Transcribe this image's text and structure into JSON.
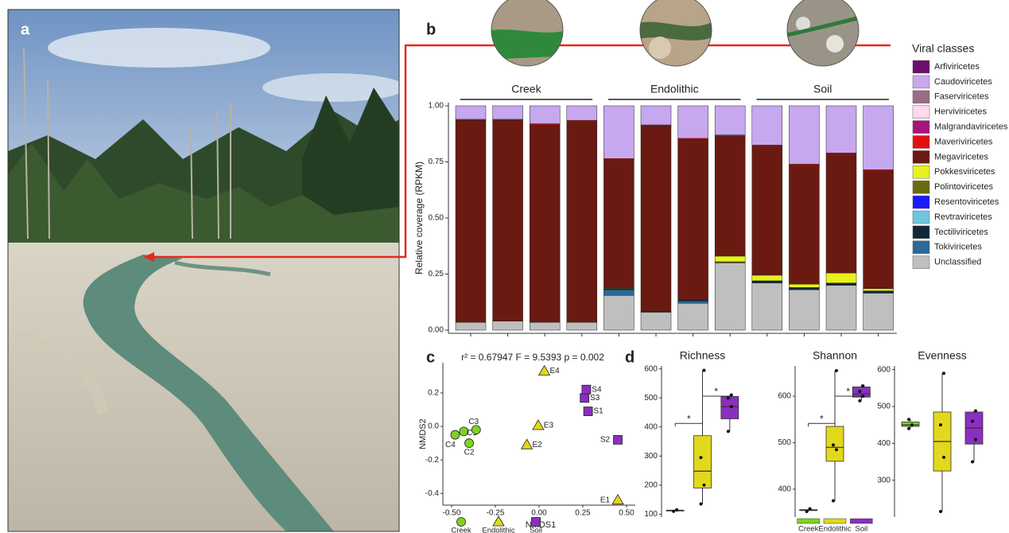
{
  "panel_labels": [
    "a",
    "b",
    "c",
    "d"
  ],
  "chart_data": [
    {
      "type": "bar",
      "stacked": true,
      "ylabel": "Relative coverage (RPKM)",
      "legend_title": "Viral classes",
      "groups": [
        "Creek",
        "Endolithic",
        "Soil"
      ],
      "categories": [
        null,
        null,
        null,
        null,
        null,
        null,
        null,
        null,
        null,
        null,
        null,
        null
      ],
      "ylim": [
        0,
        1
      ],
      "yticks": [
        {
          "value": 0,
          "label": "0.00"
        },
        {
          "value": 0.25,
          "label": "0.25"
        },
        {
          "value": 0.5,
          "label": "0.50"
        },
        {
          "value": 0.75,
          "label": "0.75"
        },
        {
          "value": 1,
          "label": "1.00"
        }
      ],
      "series": [
        {
          "name": "Arfiviricetes",
          "color": "#6a0f6e",
          "values": [
            0,
            0,
            0,
            0,
            0,
            0,
            0,
            0,
            0,
            0,
            0,
            0
          ]
        },
        {
          "name": "Caudoviricetes",
          "color": "#c6a8ee",
          "values": [
            0.06,
            0.06,
            0.08,
            0.065,
            0.235,
            0.085,
            0.145,
            0.13,
            0.175,
            0.26,
            0.21,
            0.285
          ]
        },
        {
          "name": "Faserviricetes",
          "color": "#9b6a88",
          "values": [
            0,
            0,
            0,
            0,
            0,
            0,
            0,
            0,
            0,
            0,
            0,
            0
          ]
        },
        {
          "name": "Herviviricetes",
          "color": "#ffd9ef",
          "values": [
            0,
            0,
            0,
            0,
            0,
            0,
            0,
            0,
            0,
            0,
            0,
            0
          ]
        },
        {
          "name": "Malgrandaviricetes",
          "color": "#a8137c",
          "values": [
            0,
            0,
            0,
            0,
            0,
            0,
            0,
            0,
            0,
            0,
            0,
            0
          ]
        },
        {
          "name": "Maveriviricetes",
          "color": "#e60f0f",
          "values": [
            0.005,
            0.005,
            0.005,
            0.005,
            0.005,
            0.005,
            0.005,
            0.005,
            0.005,
            0.005,
            0.005,
            0.005
          ]
        },
        {
          "name": "Megaviricetes",
          "color": "#6b1a12",
          "values": [
            0.9,
            0.895,
            0.88,
            0.895,
            0.57,
            0.825,
            0.715,
            0.535,
            0.575,
            0.53,
            0.53,
            0.525
          ]
        },
        {
          "name": "Pokkesviricetes",
          "color": "#e6f21a",
          "values": [
            0,
            0,
            0,
            0,
            0,
            0,
            0,
            0.025,
            0.025,
            0.015,
            0.045,
            0.01
          ]
        },
        {
          "name": "Polintoviricetes",
          "color": "#6b6a10",
          "values": [
            0,
            0,
            0,
            0,
            0.005,
            0,
            0,
            0.005,
            0,
            0,
            0,
            0
          ]
        },
        {
          "name": "Resentoviricetes",
          "color": "#1a1aff",
          "values": [
            0,
            0,
            0,
            0,
            0,
            0,
            0,
            0,
            0,
            0,
            0,
            0
          ]
        },
        {
          "name": "Revtraviricetes",
          "color": "#6ec6e0",
          "values": [
            0,
            0,
            0,
            0,
            0,
            0,
            0,
            0,
            0,
            0,
            0,
            0
          ]
        },
        {
          "name": "Tectiliviricetes",
          "color": "#10283a",
          "values": [
            0,
            0,
            0,
            0,
            0.005,
            0.005,
            0.005,
            0,
            0.01,
            0.01,
            0.01,
            0.01
          ]
        },
        {
          "name": "Tokiviricetes",
          "color": "#2a6a98",
          "values": [
            0,
            0,
            0,
            0,
            0.025,
            0,
            0.01,
            0,
            0,
            0,
            0,
            0
          ]
        },
        {
          "name": "Unclassified",
          "color": "#bfbfbf",
          "values": [
            0.035,
            0.04,
            0.035,
            0.035,
            0.155,
            0.08,
            0.12,
            0.3,
            0.21,
            0.18,
            0.2,
            0.165
          ]
        }
      ]
    },
    {
      "type": "scatter",
      "title": "r² = 0.67947 F = 9.5393 p = 0.002",
      "xlabel": "NMDS1",
      "ylabel": "NMDS2",
      "xlim": [
        -0.55,
        0.55
      ],
      "xticks": [
        {
          "value": -0.5,
          "label": "-0.50"
        },
        {
          "value": -0.25,
          "label": "-0.25"
        },
        {
          "value": 0,
          "label": "0.00"
        },
        {
          "value": 0.25,
          "label": "0.25"
        },
        {
          "value": 0.5,
          "label": "0.50"
        }
      ],
      "ylim": [
        -0.47,
        0.38
      ],
      "yticks": [
        -0.4,
        -0.2,
        {
          "value": 0,
          "label": "0.0"
        },
        0.2
      ],
      "series": [
        {
          "name": "Creek",
          "color": "#7ed321",
          "marker": "circle",
          "labels": [
            "C1",
            "C2",
            "C3",
            "C4"
          ],
          "x": [
            -0.43,
            -0.4,
            -0.36,
            -0.48
          ],
          "y": [
            -0.03,
            -0.1,
            -0.02,
            -0.05
          ]
        },
        {
          "name": "Endolithic",
          "color": "#e2d81c",
          "marker": "triangle",
          "labels": [
            "E1",
            "E2",
            "E3",
            "E4"
          ],
          "x": [
            0.45,
            -0.07,
            -0.005,
            0.03
          ],
          "y": [
            -0.44,
            -0.11,
            0.005,
            0.33
          ]
        },
        {
          "name": "Soil",
          "color": "#8a2fc0",
          "marker": "square",
          "labels": [
            "S1",
            "S2",
            "S3",
            "S4"
          ],
          "x": [
            0.28,
            0.45,
            0.26,
            0.27
          ],
          "y": [
            0.09,
            -0.08,
            0.17,
            0.22
          ]
        }
      ]
    },
    {
      "type": "box",
      "title": "Richness",
      "categories": [
        "Creek",
        "Endolithic",
        "Soil"
      ],
      "colors": [
        "#7ed321",
        "#e2d81c",
        "#8a2fc0"
      ],
      "ylim": [
        90,
        610
      ],
      "yticks": [
        100,
        200,
        300,
        400,
        500,
        600
      ],
      "annotations": [
        "*",
        "*"
      ],
      "legend": false,
      "boxes": [
        {
          "min": 110,
          "q1": 111,
          "median": 113,
          "q3": 114,
          "max": 115,
          "points": [
            110,
            115
          ]
        },
        {
          "min": 135,
          "q1": 190,
          "median": 248,
          "q3": 370,
          "max": 595,
          "points": [
            135,
            200,
            295,
            595
          ]
        },
        {
          "min": 385,
          "q1": 428,
          "median": 470,
          "q3": 505,
          "max": 510,
          "points": [
            385,
            470,
            500,
            510
          ]
        }
      ]
    },
    {
      "type": "box",
      "title": "Shannon",
      "categories": [
        "Creek",
        "Endolithic",
        "Soil"
      ],
      "colors": [
        "#7ed321",
        "#e2d81c",
        "#8a2fc0"
      ],
      "ylim": [
        340,
        665
      ],
      "yticks": [
        400,
        500,
        600
      ],
      "annotations": [
        "*",
        "*"
      ],
      "legend": true,
      "boxes": [
        {
          "min": 352,
          "q1": 354,
          "median": 355,
          "q3": 356,
          "max": 358,
          "points": [
            352,
            358
          ]
        },
        {
          "min": 375,
          "q1": 460,
          "median": 490,
          "q3": 535,
          "max": 655,
          "points": [
            375,
            485,
            495,
            655
          ]
        },
        {
          "min": 590,
          "q1": 598,
          "median": 605,
          "q3": 620,
          "max": 625,
          "points": [
            590,
            600,
            610,
            622
          ]
        }
      ]
    },
    {
      "type": "box",
      "title": "Evenness",
      "categories": [
        "Creek",
        "Endolithic",
        "Soil"
      ],
      "colors": [
        "#7ed321",
        "#e2d81c",
        "#8a2fc0"
      ],
      "ylim": [
        200,
        610
      ],
      "yticks": [
        300,
        400,
        500,
        600
      ],
      "annotations": [],
      "legend": false,
      "boxes": [
        {
          "min": 440,
          "q1": 446,
          "median": 450,
          "q3": 458,
          "max": 465,
          "points": [
            440,
            450,
            465
          ]
        },
        {
          "min": 215,
          "q1": 325,
          "median": 405,
          "q3": 485,
          "max": 590,
          "points": [
            215,
            362,
            450,
            590
          ]
        },
        {
          "min": 350,
          "q1": 398,
          "median": 442,
          "q3": 485,
          "max": 488,
          "points": [
            350,
            410,
            460,
            488
          ]
        }
      ]
    }
  ]
}
